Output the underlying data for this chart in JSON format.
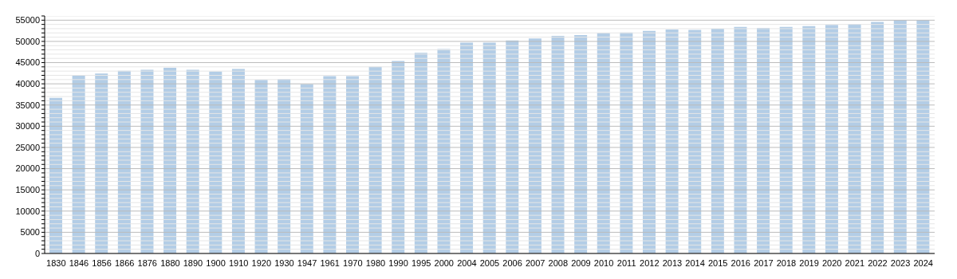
{
  "chart_data": {
    "type": "bar",
    "categories": [
      "1830",
      "1846",
      "1856",
      "1866",
      "1876",
      "1880",
      "1890",
      "1900",
      "1910",
      "1920",
      "1930",
      "1947",
      "1961",
      "1970",
      "1980",
      "1990",
      "1995",
      "2000",
      "2004",
      "2005",
      "2006",
      "2007",
      "2008",
      "2009",
      "2010",
      "2011",
      "2012",
      "2013",
      "2014",
      "2015",
      "2016",
      "2017",
      "2018",
      "2019",
      "2020",
      "2021",
      "2022",
      "2023",
      "2024"
    ],
    "values": [
      36700,
      42000,
      42400,
      43100,
      43300,
      43800,
      43300,
      42900,
      43500,
      40900,
      41100,
      39900,
      41800,
      41800,
      44000,
      45400,
      47300,
      48200,
      49700,
      49700,
      50200,
      50700,
      51300,
      51500,
      52000,
      52100,
      52500,
      52800,
      52700,
      53000,
      53400,
      53200,
      53400,
      53600,
      53900,
      54100,
      54600,
      55000,
      55000
    ],
    "color": "#b3cde6",
    "ylim": [
      0,
      56000
    ],
    "yticks": [
      0,
      {
        "value": 1000,
        "label": null
      },
      {
        "value": 2000,
        "label": null
      },
      {
        "value": 3000,
        "label": null
      },
      {
        "value": 4000,
        "label": null
      },
      5000,
      {
        "value": 6000,
        "label": null
      },
      {
        "value": 7000,
        "label": null
      },
      {
        "value": 8000,
        "label": null
      },
      {
        "value": 9000,
        "label": null
      },
      10000,
      {
        "value": 11000,
        "label": null
      },
      {
        "value": 12000,
        "label": null
      },
      {
        "value": 13000,
        "label": null
      },
      {
        "value": 14000,
        "label": null
      },
      15000,
      {
        "value": 16000,
        "label": null
      },
      {
        "value": 17000,
        "label": null
      },
      {
        "value": 18000,
        "label": null
      },
      {
        "value": 19000,
        "label": null
      },
      20000,
      {
        "value": 21000,
        "label": null
      },
      {
        "value": 22000,
        "label": null
      },
      {
        "value": 23000,
        "label": null
      },
      {
        "value": 24000,
        "label": null
      },
      25000,
      {
        "value": 26000,
        "label": null
      },
      {
        "value": 27000,
        "label": null
      },
      {
        "value": 28000,
        "label": null
      },
      {
        "value": 29000,
        "label": null
      },
      30000,
      {
        "value": 31000,
        "label": null
      },
      {
        "value": 32000,
        "label": null
      },
      {
        "value": 33000,
        "label": null
      },
      {
        "value": 34000,
        "label": null
      },
      35000,
      {
        "value": 36000,
        "label": null
      },
      {
        "value": 37000,
        "label": null
      },
      {
        "value": 38000,
        "label": null
      },
      {
        "value": 39000,
        "label": null
      },
      40000,
      {
        "value": 41000,
        "label": null
      },
      {
        "value": 42000,
        "label": null
      },
      {
        "value": 43000,
        "label": null
      },
      {
        "value": 44000,
        "label": null
      },
      45000,
      {
        "value": 46000,
        "label": null
      },
      {
        "value": 47000,
        "label": null
      },
      {
        "value": 48000,
        "label": null
      },
      {
        "value": 49000,
        "label": null
      },
      50000,
      {
        "value": 51000,
        "label": null
      },
      {
        "value": 52000,
        "label": null
      },
      {
        "value": 53000,
        "label": null
      },
      {
        "value": 54000,
        "label": null
      },
      55000,
      {
        "value": 56000,
        "label": null
      }
    ],
    "grid": "y"
  }
}
